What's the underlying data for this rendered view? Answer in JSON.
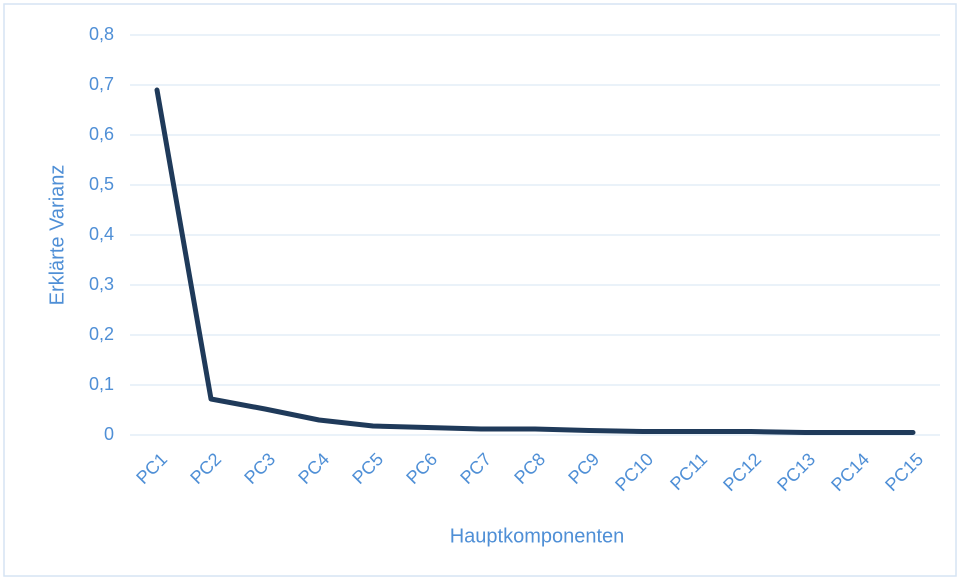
{
  "chart_data": {
    "type": "line",
    "x_label": "Hauptkomponenten",
    "y_label": "Erklärte Varianz",
    "categories": [
      "PC1",
      "PC2",
      "PC3",
      "PC4",
      "PC5",
      "PC6",
      "PC7",
      "PC8",
      "PC9",
      "PC10",
      "PC11",
      "PC12",
      "PC13",
      "PC14",
      "PC15"
    ],
    "series": [
      {
        "color": "#1f3a5a",
        "values": [
          0.69,
          0.072,
          0.052,
          0.03,
          0.018,
          0.015,
          0.012,
          0.012,
          0.009,
          0.007,
          0.007,
          0.007,
          0.005,
          0.005,
          0.005
        ]
      }
    ],
    "ylim": [
      0,
      0.8
    ],
    "yticks": [
      0,
      {
        "value": 0.1,
        "label": "0,1"
      },
      {
        "value": 0.2,
        "label": "0,2"
      },
      {
        "value": 0.3,
        "label": "0,3"
      },
      {
        "value": 0.4,
        "label": "0,4"
      },
      {
        "value": 0.5,
        "label": "0,5"
      },
      {
        "value": 0.6,
        "label": "0,6"
      },
      {
        "value": 0.7,
        "label": "0,7"
      },
      {
        "value": 0.8,
        "label": "0,8"
      }
    ],
    "grid": true
  }
}
